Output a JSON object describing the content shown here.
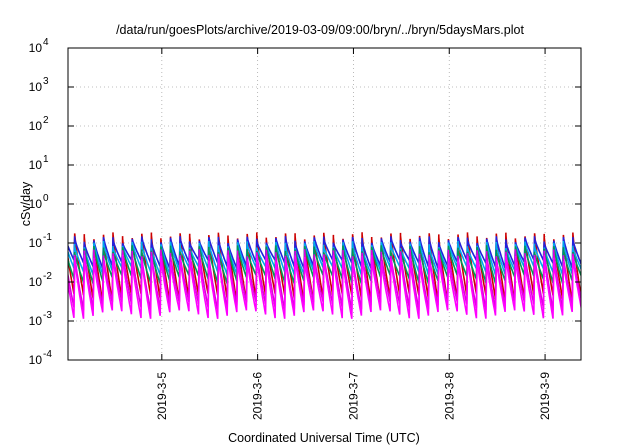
{
  "chart_data": {
    "type": "line",
    "title": "/data/run/goesPlots/archive/2019-03-09/09:00/bryn/../bryn/5daysMars.plot",
    "xlabel": "Coordinated Universal Time (UTC)",
    "ylabel": "cSv/day",
    "yscale": "log",
    "ylim": [
      0.0001,
      10000
    ],
    "y_ticks": [
      {
        "value": 0.0001,
        "mantissa": "10",
        "exp": "-4"
      },
      {
        "value": 0.001,
        "mantissa": "10",
        "exp": "-3"
      },
      {
        "value": 0.01,
        "mantissa": "10",
        "exp": "-2"
      },
      {
        "value": 0.1,
        "mantissa": "10",
        "exp": "-1"
      },
      {
        "value": 1,
        "mantissa": "10",
        "exp": "0"
      },
      {
        "value": 10,
        "mantissa": "10",
        "exp": "1"
      },
      {
        "value": 100,
        "mantissa": "10",
        "exp": "2"
      },
      {
        "value": 1000,
        "mantissa": "10",
        "exp": "3"
      },
      {
        "value": 10000,
        "mantissa": "10",
        "exp": "4"
      }
    ],
    "xlim": [
      "2019-03-04 00:30",
      "2019-03-09 09:00"
    ],
    "x_ticks": [
      "2019-3-5",
      "2019-3-6",
      "2019-3-7",
      "2019-3-8",
      "2019-3-9"
    ],
    "grid": true,
    "cycle_hours": 2.4,
    "series": [
      {
        "color": "#cc0000",
        "peak": 0.15,
        "low": 0.004
      },
      {
        "color": "#2222dd",
        "peak": 0.12,
        "low": 0.03
      },
      {
        "color": "#00aaee",
        "peak": 0.09,
        "low": 0.02
      },
      {
        "color": "#009955",
        "peak": 0.07,
        "low": 0.012
      },
      {
        "color": "#dd00dd",
        "peak": 0.055,
        "low": 0.0025
      },
      {
        "color": "#ff00ff",
        "peak": 0.04,
        "low": 0.0015
      }
    ]
  }
}
